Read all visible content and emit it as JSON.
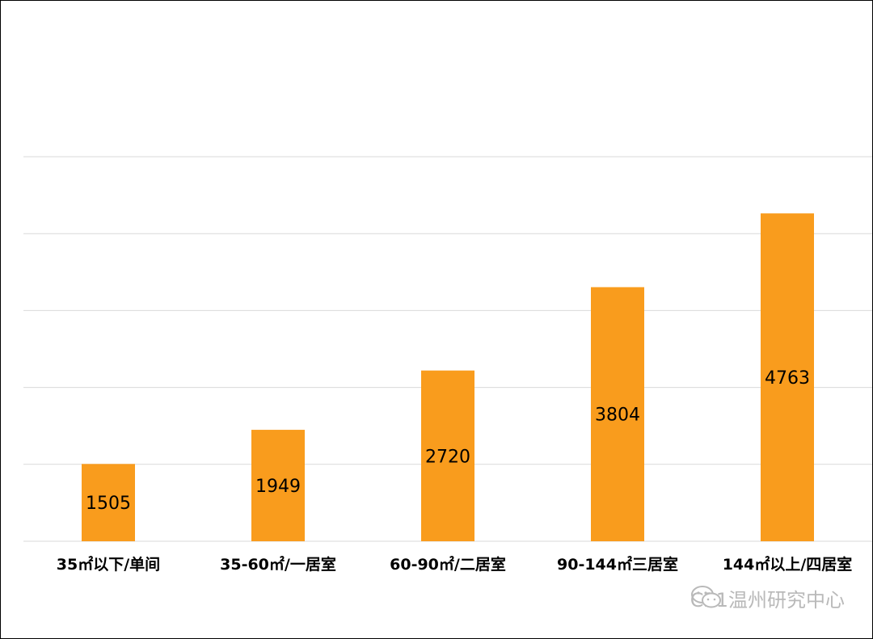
{
  "chart_data": {
    "type": "bar",
    "categories": [
      "35㎡以下/单间",
      "35-60㎡/一居室",
      "60-90㎡/二居室",
      "90-144㎡三居室",
      "144㎡以上/四居室"
    ],
    "values": [
      1505,
      1949,
      2720,
      3804,
      4763
    ],
    "title": "",
    "xlabel": "",
    "ylabel": "",
    "ylim": [
      500,
      5500
    ],
    "grid": true,
    "bar_color": "#f99c1d",
    "gridline_color": "#d9d9d9"
  },
  "watermark": {
    "text": "C21温州研究中心",
    "icon": "wechat-icon"
  }
}
